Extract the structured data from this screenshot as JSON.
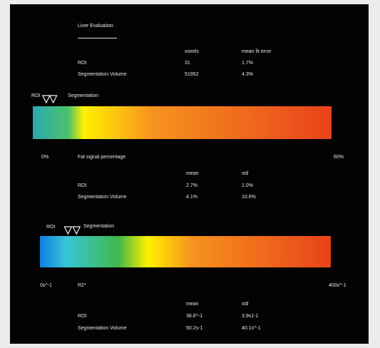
{
  "header": {
    "title": "Liver Evaluation",
    "col_voxels": "voxels",
    "col_fit_error": "mean fit error",
    "rows": [
      {
        "label": "ROI",
        "voxels": "31",
        "fit_error": "1.7%"
      },
      {
        "label": "Segmentation Volume",
        "voxels": "51952",
        "fit_error": "4.3%"
      }
    ]
  },
  "fat": {
    "roi_label": "ROI",
    "seg_label": "Segmentation",
    "min_label": "0%",
    "axis_label": "Fat signal percentage",
    "max_label": "60%",
    "col_mean": "mean",
    "col_std": "std",
    "rows": [
      {
        "label": "ROI",
        "mean": "2.7%",
        "std": "1.0%"
      },
      {
        "label": "Segmentation Volume",
        "mean": "4.1%",
        "std": "10.6%"
      }
    ],
    "roi_value_pct": 2.7,
    "seg_value_pct": 4.1,
    "range_pct": [
      0,
      60
    ],
    "colors": [
      "#2aa9b0",
      "#4cc26a",
      "#fff100",
      "#f7931e",
      "#e8421a"
    ]
  },
  "r2": {
    "roi_label": "ROI",
    "seg_label": "Segmentation",
    "min_label": "0s^-1",
    "axis_label": "R2*",
    "max_label": "400s^-1",
    "col_mean": "mean",
    "col_std": "std",
    "rows": [
      {
        "label": "ROI",
        "mean": "38.6^-1",
        "std": "3.9s1-1"
      },
      {
        "label": "Segmentation Volume",
        "mean": "50.2s-1",
        "std": "40.1s^-1"
      }
    ],
    "roi_value": 38.6,
    "seg_value": 50.2,
    "range": [
      0,
      400
    ],
    "colors": [
      "#0c7fe0",
      "#38c5d8",
      "#3fb84a",
      "#fff100",
      "#f7931e",
      "#e8421a"
    ]
  }
}
